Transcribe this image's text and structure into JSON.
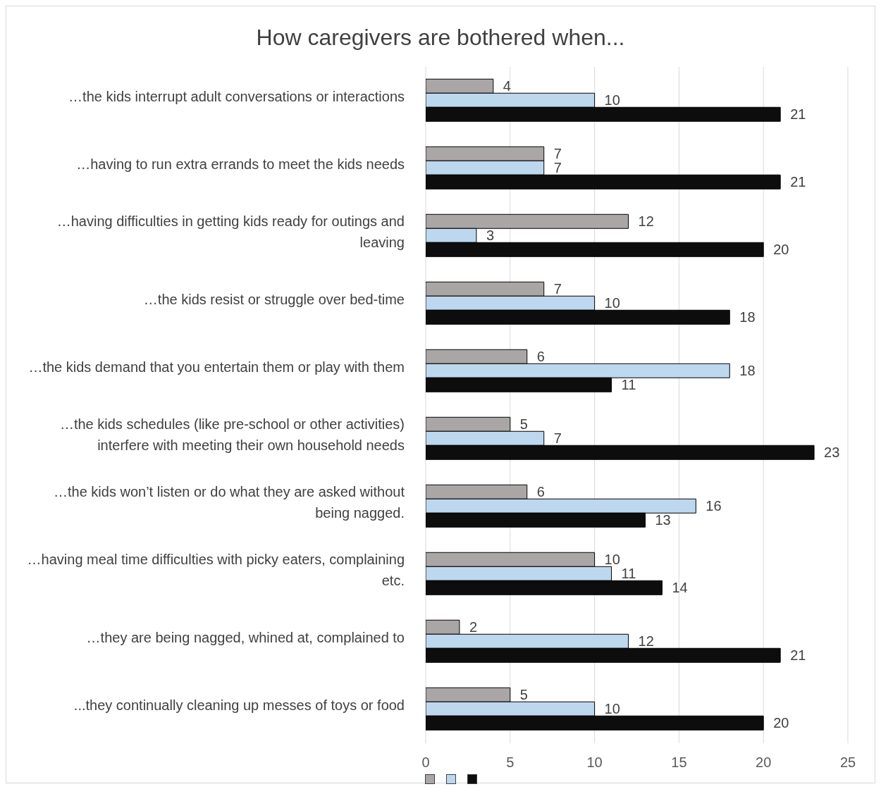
{
  "chart_data": {
    "type": "bar",
    "orientation": "horizontal",
    "title": "How caregivers are bothered when...",
    "categories": [
      "…the kids interrupt adult conversations or interactions",
      "…having to run extra errands to meet the kids needs",
      "…having difficulties in getting kids ready for outings and leaving",
      "…the kids resist or struggle over bed-time",
      "…the kids demand that you entertain them or play with them",
      "…the kids schedules (like pre-school or other activities) interfere with meeting their own household needs",
      "…the kids won’t listen or do what they are asked without being nagged.",
      "…having meal time difficulties with picky eaters, complaining etc.",
      "…they are being nagged, whined at, complained to",
      "...they continually cleaning up messes of toys or food"
    ],
    "series": [
      {
        "color": "#aaa6a6",
        "values": [
          4,
          7,
          12,
          7,
          6,
          5,
          6,
          10,
          2,
          5
        ]
      },
      {
        "color": "#bdd7ee",
        "values": [
          10,
          7,
          3,
          10,
          18,
          7,
          16,
          11,
          12,
          10
        ]
      },
      {
        "color": "#0d0d0d",
        "values": [
          21,
          21,
          20,
          18,
          11,
          23,
          13,
          14,
          21,
          20
        ]
      }
    ],
    "xlim": [
      0,
      25
    ],
    "xticks": [
      0,
      5,
      10,
      15,
      20,
      25
    ],
    "grid": "x",
    "data_labels": true
  }
}
